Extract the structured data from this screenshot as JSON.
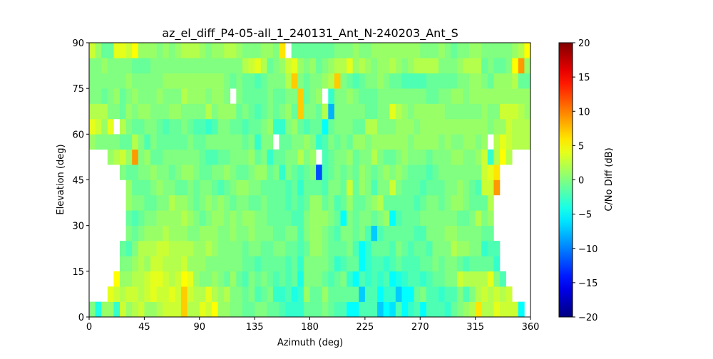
{
  "chart_data": {
    "type": "heatmap",
    "title": "az_el_diff_P4-05-all_1_240131_Ant_N-240203_Ant_S",
    "xlabel": "Azimuth (deg)",
    "ylabel": "Elevation (deg)",
    "xlim": [
      0,
      360
    ],
    "ylim": [
      0,
      90
    ],
    "x_bin_deg": 5,
    "y_bin_deg": 5,
    "xticks": [
      "0",
      "45",
      "90",
      "135",
      "180",
      "225",
      "270",
      "315",
      "360"
    ],
    "xtick_values": [
      0,
      45,
      90,
      135,
      180,
      225,
      270,
      315,
      360
    ],
    "yticks": [
      "0",
      "15",
      "30",
      "45",
      "60",
      "75",
      "90"
    ],
    "ytick_values": [
      0,
      15,
      30,
      45,
      60,
      75,
      90
    ],
    "colormap": "jet",
    "colorbar": {
      "label": "C/No Diff (dB)",
      "range": [
        -20,
        20
      ],
      "ticks": [
        "−20",
        "−15",
        "−10",
        "−5",
        "0",
        "5",
        "10",
        "15",
        "20"
      ],
      "tick_values": [
        -20,
        -15,
        -10,
        -5,
        0,
        5,
        10,
        15,
        20
      ]
    },
    "z_rows_from_elevation_0": [
      [
        0,
        -4,
        1,
        1,
        -3,
        3,
        1,
        2,
        3,
        1,
        1,
        2,
        3,
        3,
        3,
        7,
        2,
        2,
        4,
        3,
        5,
        1,
        1,
        0,
        0,
        -1,
        -1,
        0,
        0,
        -1,
        -1,
        -2,
        -3,
        -3,
        -3,
        -1,
        -1,
        -1,
        0,
        -1,
        -2,
        -2,
        -5,
        -5,
        -2,
        -2,
        -2,
        -7,
        -5,
        -6,
        -2,
        -5,
        -3,
        -2,
        -5,
        -2,
        -2,
        -2,
        -3,
        -1,
        0,
        1,
        2,
        6,
        2,
        2,
        4,
        3,
        3,
        3,
        -5,
        null
      ],
      [
        null,
        null,
        null,
        4,
        3,
        2,
        3,
        3,
        2,
        3,
        4,
        3,
        3,
        4,
        3,
        7,
        3,
        2,
        2,
        4,
        2,
        1,
        2,
        0,
        0,
        -1,
        0,
        -2,
        -1,
        0,
        -3,
        -3,
        -2,
        -4,
        -3,
        1,
        -1,
        -1,
        1,
        -1,
        -1,
        -1,
        -1,
        -1,
        -7,
        -2,
        -2,
        -5,
        -3,
        -3,
        -7,
        -5,
        -5,
        -1,
        0,
        -2,
        -2,
        -3,
        -2,
        -2,
        0,
        -2,
        0,
        2,
        3,
        2,
        3,
        2,
        3,
        null,
        null,
        null
      ],
      [
        null,
        null,
        null,
        null,
        5,
        1,
        1,
        2,
        2,
        3,
        4,
        4,
        3,
        2,
        3,
        5,
        4,
        1,
        0,
        0,
        1,
        0,
        -1,
        1,
        -1,
        -2,
        0,
        -1,
        0,
        -1,
        -2,
        -1,
        -2,
        -1,
        -4,
        0,
        0,
        0,
        -1,
        -2,
        -1,
        0,
        -3,
        -5,
        -2,
        -3,
        -2,
        -3,
        -2,
        -5,
        -4,
        -3,
        -2,
        -2,
        -3,
        -2,
        -1,
        -1,
        0,
        0,
        3,
        2,
        2,
        2,
        2,
        4,
        0,
        -2,
        null,
        null,
        null,
        null
      ],
      [
        null,
        null,
        null,
        null,
        null,
        0,
        0,
        1,
        2,
        1,
        3,
        3,
        2,
        2,
        2,
        3,
        1,
        1,
        1,
        0,
        0,
        0,
        0,
        0,
        0,
        -1,
        -1,
        -2,
        -1,
        -1,
        -1,
        -1,
        -2,
        -1,
        -3,
        0,
        0,
        0,
        0,
        -1,
        -3,
        -2,
        -1,
        -1,
        -5,
        -3,
        -2,
        -2,
        -3,
        -2,
        -1,
        -2,
        -2,
        -2,
        -1,
        -1,
        0,
        -1,
        0,
        0,
        -1,
        -2,
        -1,
        -1,
        -1,
        -1,
        -3,
        null,
        null,
        null,
        null,
        null
      ],
      [
        null,
        null,
        null,
        null,
        null,
        -1,
        -2,
        0,
        2,
        2,
        2,
        3,
        3,
        2,
        2,
        2,
        2,
        1,
        1,
        2,
        1,
        0,
        0,
        0,
        0,
        -1,
        0,
        0,
        -1,
        -1,
        0,
        0,
        -1,
        -1,
        -2,
        -1,
        1,
        1,
        0,
        -1,
        -1,
        -1,
        0,
        -2,
        -5,
        -3,
        -1,
        -1,
        -1,
        -2,
        0,
        -1,
        -2,
        -1,
        -1,
        -2,
        0,
        0,
        0,
        2,
        1,
        1,
        0,
        0,
        -3,
        -2,
        -2,
        null,
        null,
        null,
        null,
        null
      ],
      [
        null,
        null,
        null,
        null,
        null,
        null,
        0,
        -1,
        0,
        1,
        1,
        1,
        2,
        1,
        1,
        1,
        0,
        0,
        1,
        1,
        1,
        0,
        0,
        1,
        0,
        0,
        1,
        0,
        0,
        0,
        -1,
        -1,
        0,
        0,
        -2,
        0,
        1,
        1,
        0,
        -1,
        -2,
        0,
        0,
        -1,
        0,
        -2,
        -7,
        -2,
        -1,
        -1,
        -1,
        -1,
        -1,
        -2,
        -2,
        0,
        0,
        0,
        1,
        1,
        0,
        0,
        0,
        0,
        -1,
        -1,
        null,
        null,
        null,
        null,
        null,
        null
      ],
      [
        null,
        null,
        null,
        null,
        null,
        null,
        -1,
        -2,
        -1,
        0,
        0,
        1,
        1,
        1,
        1,
        2,
        1,
        0,
        -1,
        0,
        1,
        1,
        0,
        1,
        0,
        1,
        1,
        0,
        0,
        -1,
        -1,
        -1,
        -1,
        -2,
        -2,
        0,
        1,
        1,
        1,
        0,
        -1,
        -5,
        0,
        -1,
        0,
        0,
        -1,
        0,
        1,
        -5,
        -2,
        -1,
        -1,
        -1,
        0,
        0,
        0,
        0,
        0,
        0,
        -1,
        -1,
        0,
        2,
        0,
        1,
        null,
        null,
        null,
        null,
        null,
        null
      ],
      [
        null,
        null,
        null,
        null,
        null,
        null,
        1,
        0,
        0,
        -1,
        -1,
        0,
        0,
        2,
        1,
        1,
        0,
        -1,
        0,
        1,
        0,
        1,
        0,
        -1,
        0,
        0,
        -1,
        -1,
        0,
        -1,
        -1,
        -1,
        -2,
        -1,
        -2,
        -1,
        1,
        1,
        -1,
        0,
        -2,
        -1,
        1,
        -1,
        -1,
        0,
        1,
        2,
        -1,
        -1,
        -1,
        -1,
        -1,
        -2,
        -1,
        0,
        0,
        -1,
        0,
        1,
        1,
        0,
        -1,
        -1,
        -1,
        2,
        null,
        null,
        null,
        null,
        null,
        null
      ],
      [
        null,
        null,
        null,
        null,
        null,
        null,
        1,
        -1,
        -1,
        -1,
        0,
        1,
        0,
        0,
        -1,
        -1,
        0,
        -1,
        0,
        0,
        -1,
        -2,
        -1,
        0,
        1,
        1,
        0,
        0,
        -1,
        -1,
        -1,
        -1,
        -2,
        -1,
        -3,
        -1,
        -1,
        -1,
        -2,
        0,
        0,
        -1,
        3,
        -1,
        1,
        0,
        -2,
        0,
        0,
        3,
        0,
        -1,
        -1,
        -1,
        -2,
        -1,
        -1,
        -1,
        0,
        0,
        1,
        0,
        -1,
        -2,
        3,
        3,
        9,
        null,
        null,
        null,
        null,
        null
      ],
      [
        null,
        null,
        null,
        null,
        null,
        0,
        -1,
        -1,
        0,
        0,
        1,
        0,
        0,
        -1,
        0,
        1,
        1,
        0,
        -1,
        -1,
        0,
        0,
        1,
        0,
        -1,
        -1,
        0,
        1,
        1,
        -1,
        0,
        -3,
        0,
        -1,
        -2,
        -1,
        0,
        -12,
        -2,
        -1,
        0,
        -1,
        0,
        -1,
        1,
        0,
        -1,
        0,
        1,
        0,
        1,
        0,
        -1,
        -1,
        -1,
        -2,
        -1,
        0,
        0,
        0,
        0,
        0,
        0,
        0,
        3,
        4,
        6,
        null,
        null,
        null,
        null,
        null
      ],
      [
        null,
        null,
        null,
        1,
        2,
        3,
        1,
        9,
        0,
        1,
        -1,
        -1,
        0,
        0,
        0,
        0,
        0,
        0,
        -1,
        -2,
        -2,
        -1,
        -1,
        0,
        0,
        0,
        1,
        -1,
        0,
        -3,
        -1,
        -1,
        0,
        0,
        2,
        0,
        1,
        null,
        -2,
        -1,
        0,
        0,
        1,
        -1,
        0,
        0,
        2,
        0,
        -1,
        -1,
        0,
        1,
        0,
        0,
        0,
        -1,
        0,
        0,
        0,
        1,
        1,
        0,
        0,
        1,
        3,
        -3,
        2,
        5,
        2,
        null,
        null,
        null
      ],
      [
        1,
        0,
        0,
        0,
        0,
        -1,
        -1,
        2,
        0,
        -2,
        0,
        -1,
        -1,
        -1,
        -1,
        -1,
        0,
        -1,
        -1,
        0,
        0,
        0,
        0,
        0,
        0,
        -1,
        0,
        -3,
        0,
        0,
        null,
        -1,
        -1,
        0,
        0,
        1,
        0,
        -3,
        -2,
        0,
        -1,
        0,
        -1,
        1,
        1,
        0,
        1,
        1,
        1,
        1,
        1,
        1,
        0,
        1,
        1,
        1,
        1,
        0,
        1,
        0,
        0,
        1,
        1,
        0,
        1,
        null,
        2,
        4,
        3,
        2,
        2,
        2
      ],
      [
        4,
        3,
        1,
        4,
        null,
        2,
        0,
        -1,
        -1,
        0,
        0,
        -1,
        -2,
        -1,
        -1,
        0,
        -1,
        -2,
        -2,
        -3,
        -2,
        0,
        0,
        -1,
        -1,
        -2,
        -1,
        -1,
        0,
        1,
        -3,
        -3,
        0,
        1,
        -1,
        -2,
        -1,
        -1,
        -5,
        -1,
        0,
        0,
        0,
        -1,
        -1,
        2,
        2,
        0,
        0,
        0,
        1,
        1,
        1,
        0,
        1,
        1,
        1,
        1,
        1,
        1,
        1,
        1,
        1,
        1,
        1,
        0,
        1,
        1,
        3,
        2,
        2,
        2
      ],
      [
        2,
        2,
        2,
        0,
        0,
        -1,
        1,
        0,
        1,
        1,
        0,
        0,
        0,
        1,
        1,
        0,
        0,
        0,
        0,
        2,
        0,
        1,
        1,
        1,
        -1,
        0,
        -1,
        -2,
        -1,
        0,
        -1,
        0,
        1,
        -1,
        7,
        0,
        0,
        -1,
        2,
        -8,
        0,
        0,
        0,
        0,
        0,
        -1,
        -1,
        0,
        0,
        4,
        2,
        1,
        0,
        1,
        1,
        1,
        1,
        1,
        0,
        0,
        0,
        0,
        0,
        0,
        1,
        0,
        0,
        3,
        3,
        3,
        2,
        1
      ],
      [
        0,
        0,
        -1,
        0,
        1,
        -1,
        0,
        1,
        0,
        0,
        0,
        1,
        0,
        0,
        0,
        2,
        1,
        1,
        1,
        0,
        1,
        1,
        0,
        null,
        0,
        -1,
        -1,
        -1,
        -1,
        0,
        -1,
        -1,
        0,
        0,
        7,
        -1,
        0,
        1,
        null,
        -3,
        0,
        0,
        1,
        0,
        -1,
        -1,
        -1,
        0,
        0,
        0,
        0,
        0,
        0,
        0,
        0,
        -1,
        -1,
        0,
        0,
        1,
        1,
        0,
        1,
        1,
        1,
        1,
        1,
        1,
        1,
        1,
        1,
        1
      ],
      [
        0,
        0,
        0,
        0,
        0,
        0,
        1,
        0,
        0,
        0,
        0,
        0,
        1,
        1,
        1,
        1,
        1,
        1,
        1,
        1,
        1,
        1,
        0,
        -1,
        0,
        -1,
        -1,
        -2,
        -1,
        0,
        0,
        0,
        2,
        7,
        0,
        -1,
        0,
        0,
        1,
        2,
        7,
        0,
        -1,
        -2,
        -1,
        0,
        0,
        1,
        0,
        -1,
        -1,
        -2,
        -2,
        -2,
        -2,
        -1,
        -1,
        -1,
        -1,
        -1,
        0,
        0,
        1,
        1,
        0,
        -1,
        1,
        1,
        1,
        2,
        -1,
        -1
      ],
      [
        0,
        0,
        1,
        0,
        0,
        0,
        0,
        -1,
        -1,
        -1,
        0,
        0,
        0,
        0,
        0,
        0,
        0,
        0,
        0,
        0,
        0,
        0,
        0,
        0,
        0,
        2,
        3,
        4,
        2,
        -1,
        0,
        1,
        3,
        4,
        1,
        0,
        1,
        -1,
        0,
        1,
        2,
        2,
        4,
        1,
        2,
        1,
        0,
        1,
        1,
        2,
        1,
        0,
        1,
        2,
        2,
        2,
        2,
        0,
        0,
        0,
        1,
        2,
        2,
        2,
        -1,
        0,
        -1,
        -1,
        0,
        5,
        9,
        1
      ],
      [
        3,
        1,
        -1,
        -1,
        4,
        4,
        3,
        5,
        1,
        1,
        1,
        0,
        1,
        0,
        1,
        2,
        2,
        2,
        1,
        0,
        1,
        1,
        2,
        2,
        1,
        0,
        0,
        0,
        1,
        1,
        0,
        6,
        null,
        -1,
        -1,
        -1,
        -1,
        -1,
        -1,
        -1,
        0,
        0,
        0,
        1,
        0,
        0,
        1,
        1,
        1,
        1,
        1,
        1,
        1,
        1,
        0,
        0,
        0,
        1,
        0,
        -1,
        0,
        0,
        1,
        1,
        0,
        0,
        0,
        0,
        0,
        1,
        2,
        5
      ]
    ]
  }
}
